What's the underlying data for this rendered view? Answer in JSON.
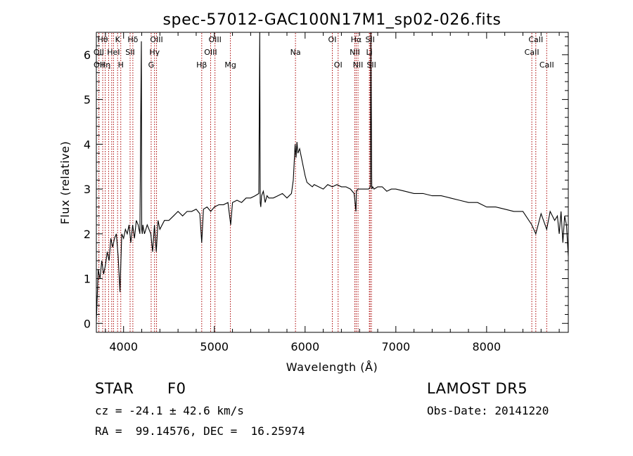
{
  "chart_data": {
    "type": "line",
    "title": "spec-57012-GAC100N17M1_sp02-026.fits",
    "xlabel": "Wavelength (Å)",
    "ylabel": "Flux (relative)",
    "xlim": [
      3700,
      8900
    ],
    "ylim": [
      -0.2,
      6.5
    ],
    "x_ticks": [
      4000,
      5000,
      6000,
      7000,
      8000
    ],
    "y_ticks": [
      0,
      1,
      2,
      3,
      4,
      5,
      6
    ],
    "grid": false,
    "series": [
      {
        "x": [
          3700,
          3720,
          3740,
          3760,
          3780,
          3800,
          3820,
          3840,
          3860,
          3880,
          3900,
          3920,
          3940,
          3960,
          3980,
          4000,
          4020,
          4040,
          4060,
          4080,
          4100,
          4120,
          4140,
          4160,
          4180,
          4190,
          4196,
          4200,
          4206,
          4212,
          4230,
          4260,
          4300,
          4320,
          4340,
          4360,
          4380,
          4400,
          4450,
          4500,
          4550,
          4600,
          4650,
          4700,
          4750,
          4800,
          4840,
          4861,
          4880,
          4920,
          4960,
          5000,
          5050,
          5100,
          5150,
          5180,
          5200,
          5250,
          5300,
          5350,
          5400,
          5450,
          5490,
          5500,
          5506,
          5512,
          5520,
          5540,
          5560,
          5580,
          5600,
          5650,
          5700,
          5750,
          5800,
          5850,
          5870,
          5880,
          5890,
          5900,
          5910,
          5920,
          5940,
          5960,
          5980,
          6000,
          6020,
          6050,
          6080,
          6100,
          6150,
          6200,
          6250,
          6300,
          6350,
          6400,
          6450,
          6500,
          6540,
          6560,
          6565,
          6580,
          6600,
          6650,
          6700,
          6720,
          6725,
          6735,
          6745,
          6760,
          6800,
          6850,
          6900,
          6950,
          7000,
          7100,
          7200,
          7300,
          7400,
          7500,
          7600,
          7700,
          7800,
          7900,
          8000,
          8100,
          8200,
          8300,
          8400,
          8498,
          8542,
          8600,
          8662,
          8700,
          8750,
          8780,
          8800,
          8820,
          8840,
          8860,
          8880,
          8900
        ],
        "y": [
          0.05,
          1.2,
          1.0,
          1.4,
          1.1,
          1.3,
          1.6,
          1.4,
          1.9,
          1.7,
          1.9,
          2.0,
          1.5,
          0.7,
          2.0,
          1.9,
          2.1,
          2.0,
          2.2,
          1.8,
          2.2,
          1.9,
          2.3,
          2.2,
          2.0,
          4.8,
          6.3,
          2.1,
          2.0,
          2.2,
          2.0,
          2.2,
          2.0,
          1.6,
          2.2,
          1.6,
          2.3,
          2.1,
          2.3,
          2.3,
          2.4,
          2.5,
          2.4,
          2.5,
          2.5,
          2.55,
          2.45,
          1.8,
          2.55,
          2.6,
          2.5,
          2.6,
          2.65,
          2.65,
          2.7,
          2.2,
          2.7,
          2.75,
          2.7,
          2.8,
          2.8,
          2.85,
          2.9,
          6.5,
          2.7,
          2.6,
          2.85,
          2.95,
          2.7,
          2.85,
          2.8,
          2.8,
          2.85,
          2.9,
          2.8,
          2.9,
          3.2,
          3.6,
          4.0,
          3.7,
          4.05,
          3.8,
          3.9,
          3.7,
          3.5,
          3.3,
          3.15,
          3.1,
          3.05,
          3.1,
          3.05,
          3.0,
          3.1,
          3.05,
          3.1,
          3.05,
          3.05,
          3.0,
          2.9,
          2.5,
          2.95,
          3.0,
          3.0,
          3.0,
          3.0,
          3.05,
          6.5,
          3.0,
          3.05,
          3.0,
          3.05,
          3.05,
          2.95,
          3.0,
          3.0,
          2.95,
          2.9,
          2.9,
          2.85,
          2.85,
          2.8,
          2.75,
          2.7,
          2.7,
          2.6,
          2.6,
          2.55,
          2.5,
          2.5,
          2.2,
          2.0,
          2.45,
          2.1,
          2.5,
          2.3,
          2.4,
          2.0,
          2.5,
          1.8,
          2.4,
          2.2,
          1.5
        ]
      }
    ],
    "lines": [
      {
        "x": 3727,
        "label": "OII",
        "row": 1
      },
      {
        "x": 3728,
        "label": "OII",
        "row": 2
      },
      {
        "x": 3770,
        "label": "Hθ",
        "row": 0
      },
      {
        "x": 3798,
        "label": "Hη",
        "row": 2
      },
      {
        "x": 3835,
        "label": "",
        "row": 0
      },
      {
        "x": 3869,
        "label": "",
        "row": 0
      },
      {
        "x": 3889,
        "label": "HeI",
        "row": 1
      },
      {
        "x": 3934,
        "label": "K",
        "row": 0
      },
      {
        "x": 3969,
        "label": "H",
        "row": 2
      },
      {
        "x": 4072,
        "label": "SII",
        "row": 1
      },
      {
        "x": 4102,
        "label": "Hδ",
        "row": 0
      },
      {
        "x": 4304,
        "label": "G",
        "row": 2
      },
      {
        "x": 4341,
        "label": "Hγ",
        "row": 1
      },
      {
        "x": 4363,
        "label": "OIII",
        "row": 0
      },
      {
        "x": 4861,
        "label": "Hβ",
        "row": 2
      },
      {
        "x": 4959,
        "label": "OIII",
        "row": 1
      },
      {
        "x": 5007,
        "label": "OIII",
        "row": 0
      },
      {
        "x": 5177,
        "label": "Mg",
        "row": 2
      },
      {
        "x": 5894,
        "label": "Na",
        "row": 1
      },
      {
        "x": 6300,
        "label": "OI",
        "row": 0
      },
      {
        "x": 6364,
        "label": "OI",
        "row": 2
      },
      {
        "x": 6548,
        "label": "NII",
        "row": 1
      },
      {
        "x": 6563,
        "label": "Hα",
        "row": 0
      },
      {
        "x": 6583,
        "label": "NII",
        "row": 2
      },
      {
        "x": 6708,
        "label": "Li",
        "row": 1
      },
      {
        "x": 6716,
        "label": "SII",
        "row": 0
      },
      {
        "x": 6731,
        "label": "SII",
        "row": 2
      },
      {
        "x": 8498,
        "label": "CaII",
        "row": 1
      },
      {
        "x": 8542,
        "label": "CaII",
        "row": 0
      },
      {
        "x": 8662,
        "label": "CaII",
        "row": 2
      }
    ],
    "colors": {
      "spectrum": "#000000",
      "line_marker": "#aa0000"
    }
  },
  "info": {
    "object_class": "STAR",
    "subclass": "F0",
    "survey": "LAMOST DR5",
    "velocity": "cz = -24.1 ± 42.6 km/s",
    "obs_date": "Obs-Date: 20141220",
    "coords": "RA =  99.14576, DEC =  16.25974"
  }
}
